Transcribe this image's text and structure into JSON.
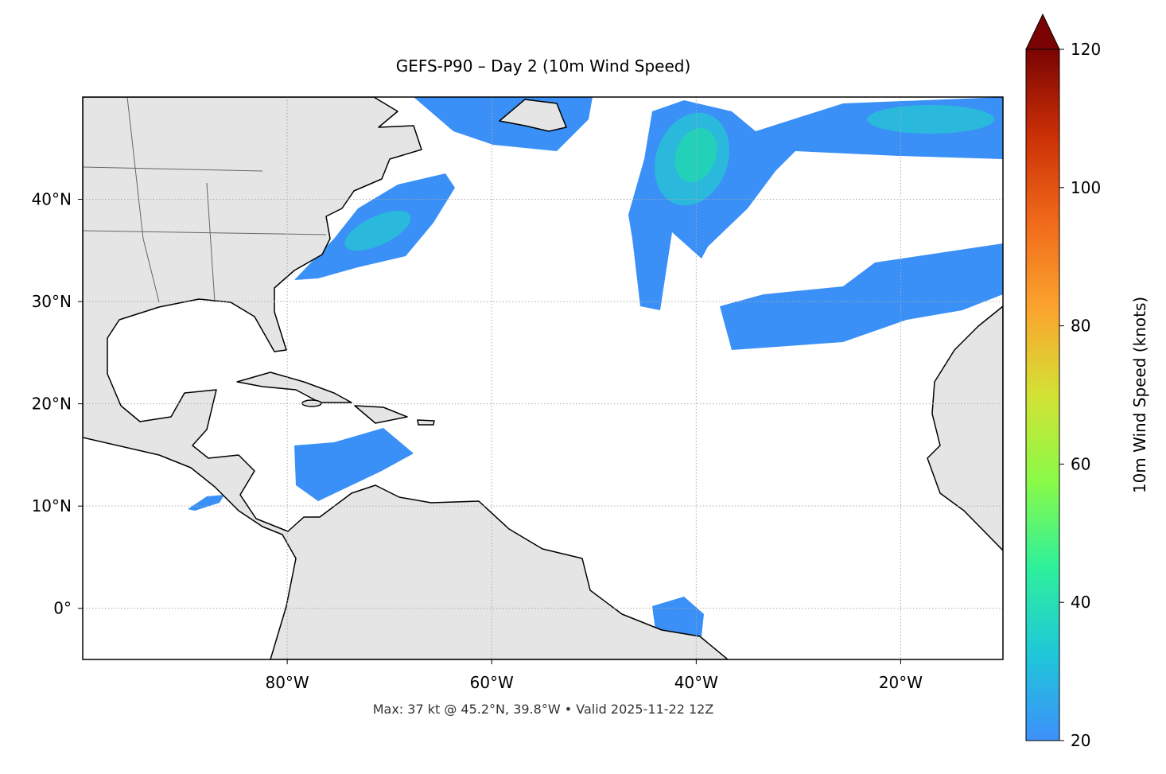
{
  "chart_data": {
    "type": "map",
    "title": "GEFS-P90 – Day 2 (10m Wind Speed)",
    "footnote": "Max: 37 kt @ 45.2°N, 39.8°W • Valid 2025-11-22 12Z",
    "xlim": [
      -100,
      -10
    ],
    "ylim": [
      -5,
      50
    ],
    "xticks": [
      {
        "value": -80,
        "label": "80°W"
      },
      {
        "value": -60,
        "label": "60°W"
      },
      {
        "value": -40,
        "label": "40°W"
      },
      {
        "value": -20,
        "label": "20°W"
      }
    ],
    "yticks": [
      {
        "value": 0,
        "label": "0°"
      },
      {
        "value": 10,
        "label": "10°N"
      },
      {
        "value": 20,
        "label": "20°N"
      },
      {
        "value": 30,
        "label": "30°N"
      },
      {
        "value": 40,
        "label": "40°N"
      }
    ],
    "grid": true,
    "colorbar": {
      "label": "10m Wind Speed (knots)",
      "lim": [
        20,
        120
      ],
      "ticks": [
        20,
        40,
        60,
        80,
        100,
        120
      ],
      "extend": "max",
      "colors": [
        "#3e90fb",
        "#1fc7d9",
        "#2ef09c",
        "#8afa47",
        "#d3e235",
        "#fba42e",
        "#f06a1a",
        "#cb3006",
        "#7a0403"
      ]
    }
  }
}
